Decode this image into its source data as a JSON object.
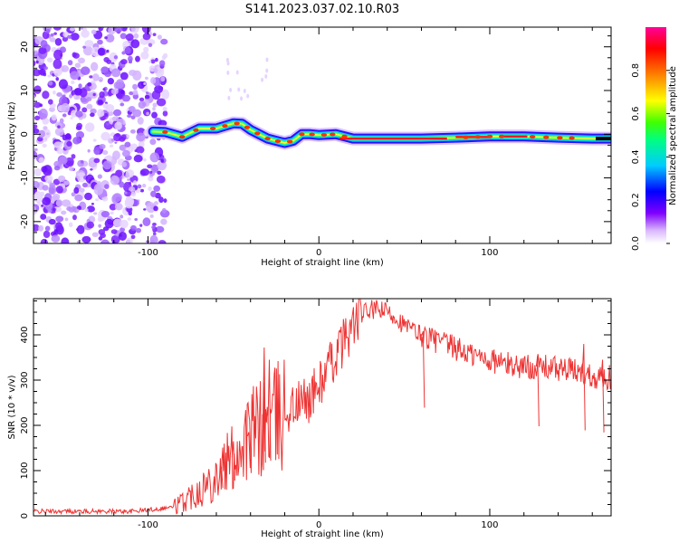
{
  "title": "S141.2023.037.02.10.R03",
  "chart_data": [
    {
      "type": "heatmap",
      "name": "spectrogram",
      "xlabel": "Height of straight line (km)",
      "ylabel": "Frequency (Hz)",
      "xlim": [
        -167,
        171
      ],
      "ylim": [
        -25,
        24.5
      ],
      "xticks": [
        -100,
        0,
        100
      ],
      "yticks": [
        -20,
        -10,
        0,
        10,
        20
      ],
      "noise_region": {
        "x_range": [
          -167,
          -93
        ],
        "y_range": [
          -25,
          24.5
        ]
      },
      "signal_track": {
        "x": [
          -97,
          -90,
          -80,
          -70,
          -60,
          -50,
          -45,
          -40,
          -35,
          -30,
          -25,
          -20,
          -15,
          -10,
          -5,
          0,
          10,
          20,
          30,
          60,
          80,
          100,
          120,
          140,
          160,
          171
        ],
        "y": [
          0.6,
          0.5,
          -0.6,
          1.3,
          1.3,
          2.5,
          2.4,
          1.0,
          0.0,
          -1.0,
          -1.5,
          -2.0,
          -1.5,
          0.0,
          0.0,
          -0.2,
          0.0,
          -1.0,
          -1.0,
          -1.0,
          -0.8,
          -0.5,
          -0.5,
          -0.8,
          -1.0,
          -1.0
        ]
      },
      "colorbar": {
        "label": "Normalized spectral amplitude",
        "range": [
          0.0,
          1.0
        ],
        "ticks": [
          "0.0",
          "0.2",
          "0.4",
          "0.6",
          "0.8"
        ],
        "colors": [
          "#ffffff",
          "#d9b8ff",
          "#8000ff",
          "#0000ff",
          "#00ccff",
          "#00ff80",
          "#40ff00",
          "#ffff00",
          "#ff8000",
          "#ff0000",
          "#ff0099"
        ]
      }
    },
    {
      "type": "line",
      "name": "snr",
      "xlabel": "Height of straight line (km)",
      "ylabel": "SNR (10 * v/v)",
      "xlim": [
        -167,
        171
      ],
      "ylim": [
        0,
        480
      ],
      "xticks": [
        -100,
        0,
        100
      ],
      "yticks": [
        0,
        100,
        200,
        300,
        400
      ],
      "color": "#ee3333",
      "series": [
        {
          "name": "SNR",
          "x": [
            -167,
            -150,
            -130,
            -110,
            -95,
            -85,
            -80,
            -75,
            -70,
            -65,
            -60,
            -55,
            -50,
            -45,
            -40,
            -35,
            -30,
            -25,
            -20,
            -15,
            -10,
            -5,
            0,
            5,
            10,
            15,
            20,
            25,
            30,
            35,
            40,
            45,
            50,
            60,
            70,
            80,
            90,
            100,
            110,
            120,
            130,
            140,
            150,
            160,
            171
          ],
          "y": [
            10,
            10,
            10,
            10,
            15,
            20,
            30,
            45,
            60,
            70,
            90,
            110,
            130,
            160,
            180,
            190,
            200,
            215,
            230,
            240,
            250,
            260,
            290,
            320,
            355,
            390,
            420,
            445,
            455,
            455,
            450,
            440,
            420,
            400,
            385,
            370,
            355,
            345,
            335,
            330,
            330,
            325,
            320,
            310,
            305
          ]
        }
      ],
      "spikes": [
        {
          "x": -32,
          "y": 372
        },
        {
          "x": -29,
          "y": 345
        },
        {
          "x": -41,
          "y": 185
        },
        {
          "x": -50,
          "y": 165
        },
        {
          "x": -57,
          "y": 108
        },
        {
          "x": 128,
          "y": 355
        },
        {
          "x": 155,
          "y": 380
        },
        {
          "x": 166,
          "y": 345
        },
        {
          "x": 61,
          "y": 408
        }
      ]
    }
  ]
}
